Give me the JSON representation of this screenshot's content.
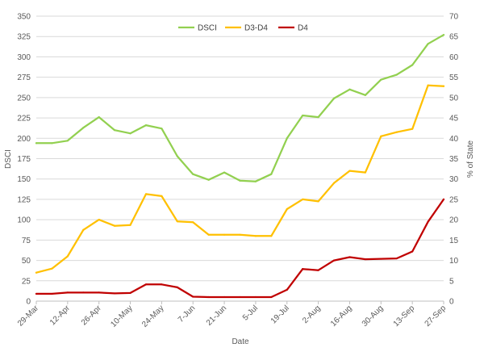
{
  "chart_data": {
    "type": "line",
    "xlabel": "Date",
    "ylabel": "DSCI",
    "y2label": "% of State",
    "ylim": [
      0,
      350
    ],
    "y2lim": [
      0,
      70
    ],
    "yticks": [
      "0",
      "25",
      "50",
      "75",
      "100",
      "125",
      "150",
      "175",
      "200",
      "225",
      "250",
      "275",
      "300",
      "325",
      "350"
    ],
    "y2ticks": [
      "0",
      "5",
      "10",
      "15",
      "20",
      "25",
      "30",
      "35",
      "40",
      "45",
      "50",
      "55",
      "60",
      "65",
      "70"
    ],
    "x_tick_labels": [
      "29-Mar",
      "12-Apr",
      "26-Apr",
      "10-May",
      "24-May",
      "7-Jun",
      "21-Jun",
      "5-Jul",
      "19-Jul",
      "2-Aug",
      "16-Aug",
      "30-Aug",
      "13-Sep",
      "27-Sep"
    ],
    "x": [
      "29-Mar",
      "5-Apr",
      "12-Apr",
      "19-Apr",
      "26-Apr",
      "3-May",
      "10-May",
      "17-May",
      "24-May",
      "31-May",
      "7-Jun",
      "14-Jun",
      "21-Jun",
      "28-Jun",
      "5-Jul",
      "12-Jul",
      "19-Jul",
      "26-Jul",
      "2-Aug",
      "9-Aug",
      "16-Aug",
      "23-Aug",
      "30-Aug",
      "6-Sep",
      "13-Sep",
      "20-Sep",
      "27-Sep"
    ],
    "legend_position": "top",
    "grid": true,
    "series": [
      {
        "name": "DSCI",
        "axis": "left",
        "color": "#92d050",
        "values": [
          194,
          194,
          197,
          213,
          226,
          210,
          206,
          216,
          212,
          178,
          156,
          149,
          158,
          148,
          147,
          156,
          200,
          228,
          226,
          249,
          260,
          253,
          272,
          278,
          290,
          316,
          327
        ]
      },
      {
        "name": "D3-D4",
        "axis": "right",
        "color": "#ffc000",
        "values": [
          7,
          8,
          11,
          17.5,
          20,
          18.5,
          18.7,
          26.3,
          25.8,
          19.6,
          19.4,
          16.3,
          16.3,
          16.3,
          16,
          16,
          22.6,
          25,
          24.5,
          29,
          32,
          31.6,
          40.5,
          41.5,
          42.3,
          53,
          52.8
        ]
      },
      {
        "name": "D4",
        "axis": "right",
        "color": "#c00000",
        "values": [
          1.8,
          1.8,
          2.1,
          2.1,
          2.1,
          1.9,
          2.0,
          4.1,
          4.1,
          3.4,
          1.1,
          1.0,
          1.0,
          1.0,
          1.0,
          1.0,
          2.8,
          7.9,
          7.6,
          10,
          10.8,
          10.3,
          10.4,
          10.5,
          12.2,
          19.5,
          25
        ]
      }
    ]
  }
}
